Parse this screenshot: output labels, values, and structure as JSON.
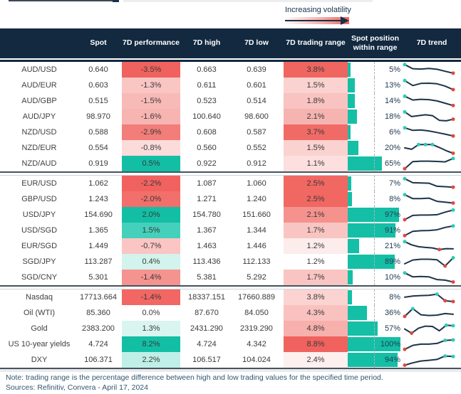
{
  "legend": {
    "label": "Increasing volatility"
  },
  "palette": {
    "header_bg": "#122940",
    "bar_teal": "#14bfa5",
    "spark_line": "#1d3349",
    "dot_teal": "#2fcbb3",
    "dot_red": "#e2483d",
    "strong_red": "#f0625e",
    "strong_teal": "#12bfa4"
  },
  "footer": {
    "note": "Note: trading range is the percentage difference between high and low trading values for the specified time period.",
    "sources": "Sources: Refinitiv, Convera - April 17, 2024"
  },
  "chart_data": {
    "type": "table",
    "columns": [
      "",
      "Spot",
      "7D performance",
      "7D high",
      "7D low",
      "7D trading range",
      "Spot position within range",
      "7D trend"
    ],
    "legend_note": "Increasing volatility gradient arrow above the 7D trading range column",
    "groups": [
      {
        "rows": [
          {
            "label": "AUD/USD",
            "spot": "0.640",
            "perf": "-3.5%",
            "perf_bg": "#f0625e",
            "high": "0.663",
            "low": "0.639",
            "range": "3.8%",
            "range_bg": "#f0655f",
            "position_pct": 5,
            "position_label": "5%",
            "spark_points": [
              0.95,
              0.6,
              0.57,
              0.62,
              0.55,
              0.38,
              0.22
            ],
            "spark_dots": [
              {
                "i": 0,
                "c": "teal"
              },
              {
                "i": 6,
                "c": "red"
              }
            ]
          },
          {
            "label": "AUD/EUR",
            "spot": "0.603",
            "perf": "-1.3%",
            "perf_bg": "#f9c6c4",
            "high": "0.611",
            "low": "0.601",
            "range": "1.5%",
            "range_bg": "#fad2d0",
            "position_pct": 13,
            "position_label": "13%",
            "spark_points": [
              0.92,
              0.5,
              0.68,
              0.7,
              0.65,
              0.45,
              0.15
            ],
            "spark_dots": [
              {
                "i": 0,
                "c": "teal"
              },
              {
                "i": 6,
                "c": "red"
              }
            ]
          },
          {
            "label": "AUD/GBP",
            "spot": "0.515",
            "perf": "-1.5%",
            "perf_bg": "#f8bab7",
            "high": "0.523",
            "low": "0.514",
            "range": "1.8%",
            "range_bg": "#f8c3c0",
            "position_pct": 14,
            "position_label": "14%",
            "spark_points": [
              0.92,
              0.6,
              0.66,
              0.63,
              0.52,
              0.33,
              0.13
            ],
            "spark_dots": [
              {
                "i": 0,
                "c": "teal"
              },
              {
                "i": 6,
                "c": "red"
              }
            ]
          },
          {
            "label": "AUD/JPY",
            "spot": "98.970",
            "perf": "-1.6%",
            "perf_bg": "#f7b4b1",
            "high": "100.640",
            "low": "98.600",
            "range": "2.1%",
            "range_bg": "#f6b4b1",
            "position_pct": 18,
            "position_label": "18%",
            "spark_points": [
              0.92,
              0.52,
              0.6,
              0.67,
              0.6,
              0.2,
              0.16,
              0.3
            ],
            "spark_dots": [
              {
                "i": 0,
                "c": "teal"
              },
              {
                "i": 7,
                "c": "red"
              }
            ]
          },
          {
            "label": "NZD/USD",
            "spot": "0.588",
            "perf": "-2.9%",
            "perf_bg": "#f27d79",
            "high": "0.608",
            "low": "0.587",
            "range": "3.7%",
            "range_bg": "#f16b66",
            "position_pct": 6,
            "position_label": "6%",
            "spark_points": [
              0.9,
              0.68,
              0.71,
              0.63,
              0.5,
              0.36,
              0.2
            ],
            "spark_dots": [
              {
                "i": 0,
                "c": "teal"
              },
              {
                "i": 6,
                "c": "red"
              }
            ]
          },
          {
            "label": "NZD/EUR",
            "spot": "0.554",
            "perf": "-0.8%",
            "perf_bg": "#fcdcdb",
            "high": "0.560",
            "low": "0.552",
            "range": "1.5%",
            "range_bg": "#fad2d0",
            "position_pct": 20,
            "position_label": "20%",
            "spark_points": [
              0.52,
              0.4,
              0.8,
              0.8,
              0.8,
              0.55,
              0.28,
              0.06
            ],
            "spark_dots": [
              {
                "i": 2,
                "c": "teal"
              },
              {
                "i": 3,
                "c": "teal"
              },
              {
                "i": 4,
                "c": "teal"
              },
              {
                "i": 7,
                "c": "red"
              }
            ]
          },
          {
            "label": "NZD/AUD",
            "spot": "0.919",
            "perf": "0.5%",
            "perf_bg": "#12bfa4",
            "high": "0.922",
            "low": "0.912",
            "range": "1.1%",
            "range_bg": "#fcdfde",
            "position_pct": 65,
            "position_label": "65%",
            "spark_points": [
              0.08,
              0.68,
              0.72,
              0.72,
              0.7,
              0.66,
              0.95
            ],
            "spark_dots": [
              {
                "i": 0,
                "c": "red"
              },
              {
                "i": 6,
                "c": "teal"
              }
            ]
          }
        ]
      },
      {
        "rows": [
          {
            "label": "EUR/USD",
            "spot": "1.062",
            "perf": "-2.2%",
            "perf_bg": "#f1625e",
            "high": "1.087",
            "low": "1.060",
            "range": "2.5%",
            "range_bg": "#f16762",
            "position_pct": 7,
            "position_label": "7%",
            "spark_points": [
              0.92,
              0.58,
              0.56,
              0.54,
              0.28,
              0.24,
              0.2
            ],
            "spark_dots": [
              {
                "i": 0,
                "c": "teal"
              },
              {
                "i": 6,
                "c": "red"
              }
            ]
          },
          {
            "label": "GBP/USD",
            "spot": "1.243",
            "perf": "-2.0%",
            "perf_bg": "#f26f6b",
            "high": "1.271",
            "low": "1.240",
            "range": "2.5%",
            "range_bg": "#f16762",
            "position_pct": 8,
            "position_label": "8%",
            "spark_points": [
              0.9,
              0.56,
              0.56,
              0.6,
              0.33,
              0.26,
              0.18
            ],
            "spark_dots": [
              {
                "i": 0,
                "c": "teal"
              },
              {
                "i": 6,
                "c": "red"
              }
            ]
          },
          {
            "label": "USD/JPY",
            "spot": "154.690",
            "perf": "2.0%",
            "perf_bg": "#12bfa4",
            "high": "154.780",
            "low": "151.660",
            "range": "2.1%",
            "range_bg": "#f5928e",
            "position_pct": 97,
            "position_label": "97%",
            "spark_points": [
              0.1,
              0.46,
              0.49,
              0.49,
              0.52,
              0.74,
              0.92
            ],
            "spark_dots": [
              {
                "i": 0,
                "c": "red"
              },
              {
                "i": 6,
                "c": "teal"
              }
            ]
          },
          {
            "label": "USD/SGD",
            "spot": "1.365",
            "perf": "1.5%",
            "perf_bg": "#45d0bb",
            "high": "1.367",
            "low": "1.344",
            "range": "1.7%",
            "range_bg": "#f9c5c2",
            "position_pct": 91,
            "position_label": "91%",
            "spark_points": [
              0.08,
              0.44,
              0.49,
              0.51,
              0.57,
              0.77,
              0.9
            ],
            "spark_dots": [
              {
                "i": 0,
                "c": "red"
              },
              {
                "i": 6,
                "c": "teal"
              }
            ]
          },
          {
            "label": "EUR/SGD",
            "spot": "1.449",
            "perf": "-0.7%",
            "perf_bg": "#fac5c3",
            "high": "1.463",
            "low": "1.446",
            "range": "1.2%",
            "range_bg": "#fdecec",
            "position_pct": 21,
            "position_label": "21%",
            "spark_points": [
              0.9,
              0.62,
              0.46,
              0.4,
              0.36,
              0.22,
              0.3,
              0.28
            ],
            "spark_dots": [
              {
                "i": 0,
                "c": "teal"
              },
              {
                "i": 5,
                "c": "red"
              }
            ]
          },
          {
            "label": "SGD/JPY",
            "spot": "113.287",
            "perf": "0.4%",
            "perf_bg": "#d3f3ed",
            "high": "113.436",
            "low": "112.133",
            "range": "1.2%",
            "range_bg": "#ffffff",
            "position_pct": 89,
            "position_label": "89%",
            "spark_points": [
              0.34,
              0.66,
              0.73,
              0.73,
              0.68,
              0.15,
              0.85
            ],
            "spark_dots": [
              {
                "i": 5,
                "c": "red"
              },
              {
                "i": 6,
                "c": "teal"
              }
            ]
          },
          {
            "label": "SGD/CNY",
            "spot": "5.301",
            "perf": "-1.4%",
            "perf_bg": "#f4938f",
            "high": "5.381",
            "low": "5.292",
            "range": "1.7%",
            "range_bg": "#f9c5c2",
            "position_pct": 10,
            "position_label": "10%",
            "spark_points": [
              0.9,
              0.56,
              0.59,
              0.56,
              0.33,
              0.28,
              0.12
            ],
            "spark_dots": [
              {
                "i": 0,
                "c": "teal"
              },
              {
                "i": 6,
                "c": "red"
              }
            ]
          }
        ]
      },
      {
        "rows": [
          {
            "label": "Nasdaq",
            "spot": "17713.664",
            "perf": "-1.4%",
            "perf_bg": "#f26763",
            "high": "18337.151",
            "low": "17660.889",
            "range": "3.8%",
            "range_bg": "#fbd3d1",
            "position_pct": 8,
            "position_label": "8%",
            "spark_points": [
              0.52,
              0.62,
              0.66,
              0.68,
              0.78,
              0.22,
              0.15
            ],
            "spark_dots": [
              {
                "i": 4,
                "c": "teal"
              },
              {
                "i": 5,
                "c": "red"
              },
              {
                "i": 6,
                "c": "red"
              }
            ]
          },
          {
            "label": "Oil (WTI)",
            "spot": "85.360",
            "perf": "0.0%",
            "perf_bg": "#ffffff",
            "high": "87.670",
            "low": "84.050",
            "range": "4.3%",
            "range_bg": "#f9c2bf",
            "position_pct": 36,
            "position_label": "36%",
            "spark_points": [
              0.22,
              0.88,
              0.36,
              0.3,
              0.33,
              0.46,
              0.4
            ],
            "spark_dots": [
              {
                "i": 0,
                "c": "red"
              },
              {
                "i": 1,
                "c": "teal"
              }
            ]
          },
          {
            "label": "Gold",
            "spot": "2383.200",
            "perf": "1.3%",
            "perf_bg": "#d9f5ef",
            "high": "2431.290",
            "low": "2319.290",
            "range": "4.8%",
            "range_bg": "#f7b0ac",
            "position_pct": 57,
            "position_label": "57%",
            "spark_points": [
              0.48,
              0.12,
              0.55,
              0.72,
              0.7,
              0.33,
              0.8,
              0.76
            ],
            "spark_dots": [
              {
                "i": 1,
                "c": "red"
              },
              {
                "i": 6,
                "c": "teal"
              },
              {
                "i": 7,
                "c": "teal"
              }
            ]
          },
          {
            "label": "US 10-year yields",
            "spot": "4.724",
            "perf": "8.2%",
            "perf_bg": "#12bfa4",
            "high": "4.724",
            "low": "4.342",
            "range": "8.8%",
            "range_bg": "#f0625e",
            "position_pct": 100,
            "position_label": "100%",
            "spark_points": [
              0.08,
              0.42,
              0.52,
              0.52,
              0.58,
              0.84,
              0.88
            ],
            "spark_dots": [
              {
                "i": 0,
                "c": "red"
              },
              {
                "i": 5,
                "c": "teal"
              },
              {
                "i": 6,
                "c": "teal"
              }
            ]
          },
          {
            "label": "DXY",
            "spot": "106.371",
            "perf": "2.2%",
            "perf_bg": "#c0efe7",
            "high": "106.517",
            "low": "104.024",
            "range": "2.4%",
            "range_bg": "#fdf0ef",
            "position_pct": 94,
            "position_label": "94%",
            "spark_points": [
              0.06,
              0.26,
              0.42,
              0.48,
              0.55,
              0.84,
              0.8
            ],
            "spark_dots": [
              {
                "i": 0,
                "c": "red"
              },
              {
                "i": 5,
                "c": "teal"
              },
              {
                "i": 6,
                "c": "teal"
              }
            ]
          }
        ]
      }
    ]
  }
}
